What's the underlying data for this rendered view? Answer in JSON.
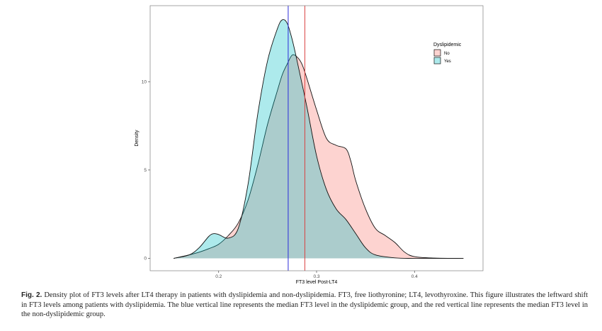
{
  "chart_data": {
    "type": "area",
    "xlabel": "FT3 level Post-LT4",
    "ylabel": "Density",
    "xlim": [
      0.13,
      0.47
    ],
    "ylim": [
      -0.7,
      14.3
    ],
    "x_ticks": [
      {
        "value": 0.2,
        "label": "0.2"
      },
      {
        "value": 0.3,
        "label": "0.3"
      },
      {
        "value": 0.4,
        "label": "0.4"
      }
    ],
    "y_ticks": [
      {
        "value": 0,
        "label": "0"
      },
      {
        "value": 5,
        "label": "5"
      },
      {
        "value": 10,
        "label": "10"
      }
    ],
    "grid": false,
    "legend": {
      "title": "Dyslipidemic",
      "position": "top-right",
      "entries": [
        {
          "label": "No",
          "color": "#F8766D"
        },
        {
          "label": "Yes",
          "color": "#00BFC4"
        }
      ]
    },
    "series": [
      {
        "name": "No",
        "fill": "#F8766D",
        "x": [
          0.154,
          0.17,
          0.18,
          0.19,
          0.2,
          0.21,
          0.22,
          0.23,
          0.24,
          0.25,
          0.26,
          0.265,
          0.27,
          0.275,
          0.28,
          0.285,
          0.29,
          0.3,
          0.31,
          0.32,
          0.33,
          0.335,
          0.34,
          0.35,
          0.36,
          0.37,
          0.38,
          0.39,
          0.4,
          0.42,
          0.45
        ],
        "y": [
          0,
          0.2,
          0.35,
          0.55,
          0.8,
          1.3,
          2.0,
          3.3,
          5.3,
          7.6,
          9.5,
          10.4,
          11.0,
          11.5,
          11.4,
          11.0,
          10.2,
          8.4,
          6.8,
          6.4,
          6.2,
          5.5,
          4.4,
          2.8,
          1.7,
          1.3,
          0.9,
          0.35,
          0.1,
          0.02,
          0
        ]
      },
      {
        "name": "Yes",
        "fill": "#00BFC4",
        "x": [
          0.154,
          0.17,
          0.18,
          0.19,
          0.195,
          0.2,
          0.21,
          0.22,
          0.23,
          0.24,
          0.25,
          0.26,
          0.265,
          0.27,
          0.275,
          0.28,
          0.29,
          0.3,
          0.31,
          0.32,
          0.33,
          0.34,
          0.35,
          0.36,
          0.38,
          0.4,
          0.45
        ],
        "y": [
          0,
          0.2,
          0.6,
          1.25,
          1.4,
          1.35,
          1.15,
          1.7,
          4.2,
          8.2,
          11.2,
          13.0,
          13.5,
          13.3,
          12.4,
          11.2,
          8.6,
          5.8,
          3.9,
          2.8,
          2.2,
          1.4,
          0.6,
          0.2,
          0.03,
          0,
          0
        ]
      }
    ],
    "median_lines": [
      {
        "group": "Yes",
        "x": 0.271,
        "color": "#2b2bd9"
      },
      {
        "group": "No",
        "x": 0.288,
        "color": "#d94040"
      }
    ]
  },
  "caption": {
    "label": "Fig. 2.",
    "text": " Density plot of FT3 levels after LT4 therapy in patients with dyslipidemia and non-dyslipidemia. FT3, free liothyronine; LT4, levothyroxine. This figure illustrates the leftward shift in FT3 levels among patients with dyslipidemia. The blue vertical line represents the median FT3 level in the dyslipidemic group, and the red vertical line represents the median FT3 level in the non-dyslipidemic group."
  }
}
